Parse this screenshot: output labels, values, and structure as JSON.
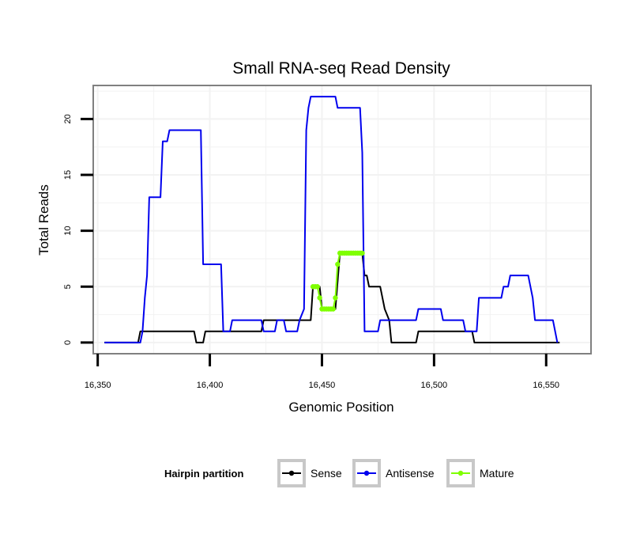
{
  "chart_data": {
    "type": "line",
    "title": "Small RNA-seq Read Density",
    "xlabel": "Genomic Position",
    "ylabel": "Total Reads",
    "xlim": [
      16348,
      16570
    ],
    "ylim": [
      -1,
      23
    ],
    "x_ticks": [
      16350,
      16400,
      16450,
      16500,
      16550
    ],
    "x_tick_labels": [
      "16,350",
      "16,400",
      "16,450",
      "16,500",
      "16,550"
    ],
    "y_ticks": [
      0,
      5,
      10,
      15,
      20
    ],
    "y_tick_labels": [
      "0",
      "5",
      "10",
      "15",
      "20"
    ],
    "grid": true,
    "legend": {
      "title": "Hairpin partition",
      "position": "bottom",
      "entries": [
        "Sense",
        "Antisense",
        "Mature"
      ]
    },
    "series": [
      {
        "name": "Sense",
        "color": "#000000",
        "points": [
          [
            16353,
            0
          ],
          [
            16368,
            0
          ],
          [
            16369,
            1
          ],
          [
            16393,
            1
          ],
          [
            16394,
            0
          ],
          [
            16397,
            0
          ],
          [
            16398,
            1
          ],
          [
            16423,
            1
          ],
          [
            16424,
            2
          ],
          [
            16445,
            2
          ],
          [
            16446,
            5
          ],
          [
            16449,
            5
          ],
          [
            16450,
            3
          ],
          [
            16456,
            3
          ],
          [
            16458,
            8
          ],
          [
            16468,
            8
          ],
          [
            16469,
            6
          ],
          [
            16470,
            6
          ],
          [
            16471,
            5
          ],
          [
            16476,
            5
          ],
          [
            16478,
            3
          ],
          [
            16480,
            2
          ],
          [
            16481,
            0
          ],
          [
            16492,
            0
          ],
          [
            16493,
            1
          ],
          [
            16517,
            1
          ],
          [
            16518,
            0
          ],
          [
            16556,
            0
          ]
        ]
      },
      {
        "name": "Antisense",
        "color": "#0000ee",
        "points": [
          [
            16353,
            0
          ],
          [
            16369,
            0
          ],
          [
            16370,
            1
          ],
          [
            16371,
            4
          ],
          [
            16372,
            6
          ],
          [
            16373,
            13
          ],
          [
            16378,
            13
          ],
          [
            16379,
            18
          ],
          [
            16381,
            18
          ],
          [
            16382,
            19
          ],
          [
            16396,
            19
          ],
          [
            16397,
            7
          ],
          [
            16405,
            7
          ],
          [
            16406,
            1
          ],
          [
            16409,
            1
          ],
          [
            16410,
            2
          ],
          [
            16423,
            2
          ],
          [
            16424,
            1
          ],
          [
            16429,
            1
          ],
          [
            16430,
            2
          ],
          [
            16433,
            2
          ],
          [
            16434,
            1
          ],
          [
            16439,
            1
          ],
          [
            16440,
            2
          ],
          [
            16442,
            3
          ],
          [
            16443,
            19
          ],
          [
            16444,
            21
          ],
          [
            16445,
            22
          ],
          [
            16456,
            22
          ],
          [
            16457,
            21
          ],
          [
            16467,
            21
          ],
          [
            16468,
            17
          ],
          [
            16469,
            1
          ],
          [
            16475,
            1
          ],
          [
            16476,
            2
          ],
          [
            16492,
            2
          ],
          [
            16493,
            3
          ],
          [
            16503,
            3
          ],
          [
            16504,
            2
          ],
          [
            16513,
            2
          ],
          [
            16514,
            1
          ],
          [
            16519,
            1
          ],
          [
            16520,
            4
          ],
          [
            16530,
            4
          ],
          [
            16531,
            5
          ],
          [
            16533,
            5
          ],
          [
            16534,
            6
          ],
          [
            16542,
            6
          ],
          [
            16544,
            4
          ],
          [
            16545,
            2
          ],
          [
            16552,
            2
          ],
          [
            16553,
            2
          ],
          [
            16555,
            0
          ]
        ]
      },
      {
        "name": "Mature",
        "color": "#7fff00",
        "points": [
          [
            16446,
            5
          ],
          [
            16447,
            5
          ],
          [
            16448,
            5
          ],
          [
            16449,
            4
          ],
          [
            16450,
            3
          ],
          [
            16451,
            3
          ],
          [
            16452,
            3
          ],
          [
            16453,
            3
          ],
          [
            16454,
            3
          ],
          [
            16455,
            3
          ],
          [
            16456,
            4
          ],
          [
            16457,
            7
          ],
          [
            16458,
            8
          ],
          [
            16459,
            8
          ],
          [
            16460,
            8
          ],
          [
            16461,
            8
          ],
          [
            16462,
            8
          ],
          [
            16463,
            8
          ],
          [
            16464,
            8
          ],
          [
            16465,
            8
          ],
          [
            16466,
            8
          ],
          [
            16467,
            8
          ],
          [
            16468,
            8
          ]
        ]
      }
    ]
  }
}
